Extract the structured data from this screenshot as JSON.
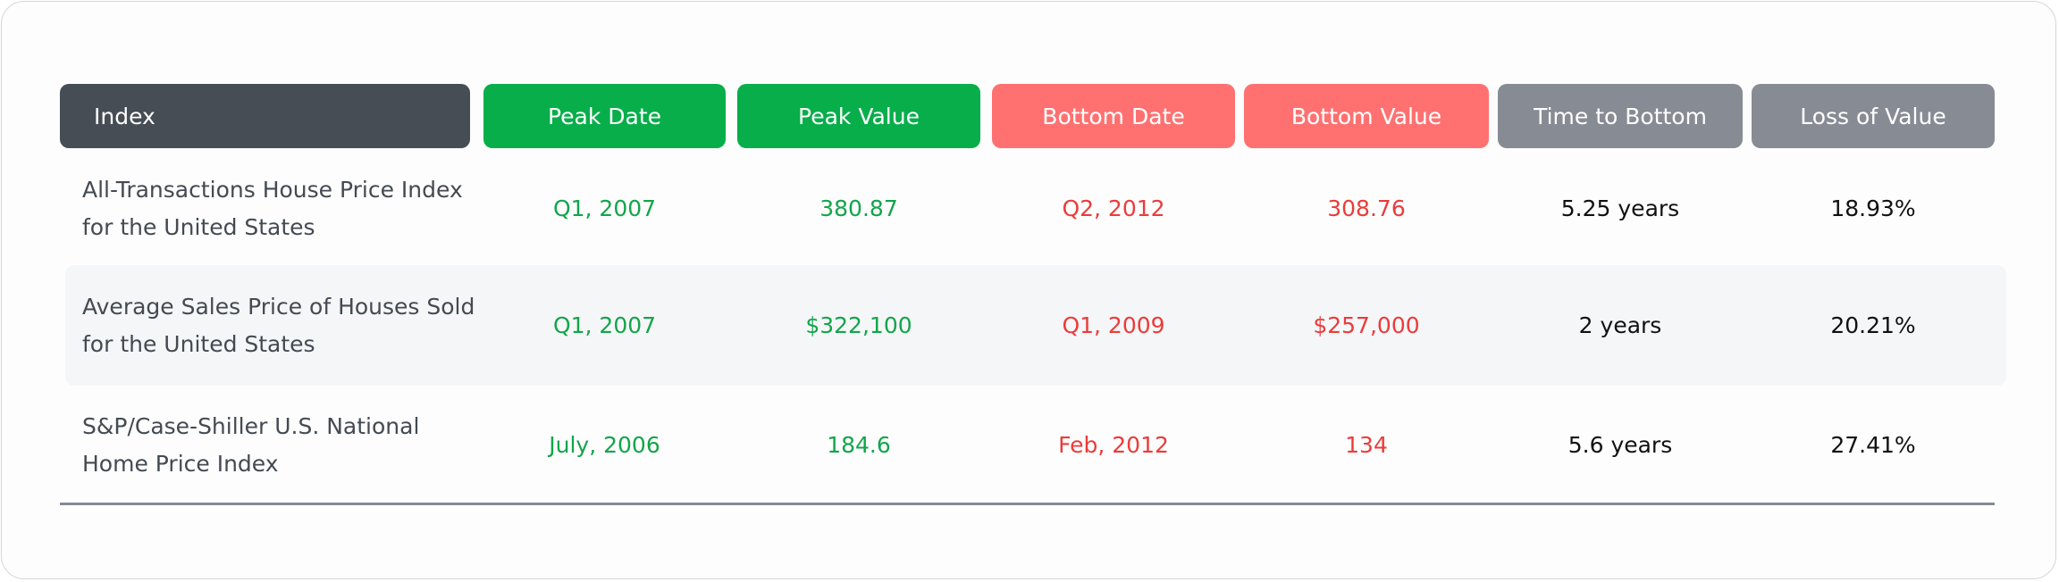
{
  "colors": {
    "index_header": "#474d55",
    "peak_header": "#07ae4a",
    "bottom_header": "#ff7171",
    "other_header": "#878b93",
    "peak_text": "#12a54a",
    "bottom_text": "#ec3b3b"
  },
  "headers": [
    "Index",
    "Peak Date",
    "Peak Value",
    "Bottom Date",
    "Bottom Value",
    "Time to Bottom",
    "Loss of Value"
  ],
  "rows": [
    {
      "index": "All-Transactions House Price Index for the United States",
      "peak_date": "Q1, 2007",
      "peak_value": "380.87",
      "bottom_date": "Q2, 2012",
      "bottom_value": "308.76",
      "time_to_bottom": "5.25 years",
      "loss": "18.93%"
    },
    {
      "index": "Average Sales Price of Houses Sold for the United States",
      "peak_date": "Q1, 2007",
      "peak_value": "$322,100",
      "bottom_date": "Q1, 2009",
      "bottom_value": "$257,000",
      "time_to_bottom": "2 years",
      "loss": "20.21%"
    },
    {
      "index": "S&P/Case-Shiller U.S. National Home Price Index",
      "peak_date": "July, 2006",
      "peak_value": "184.6",
      "bottom_date": "Feb, 2012",
      "bottom_value": "134",
      "time_to_bottom": "5.6 years",
      "loss": "27.41%"
    }
  ]
}
